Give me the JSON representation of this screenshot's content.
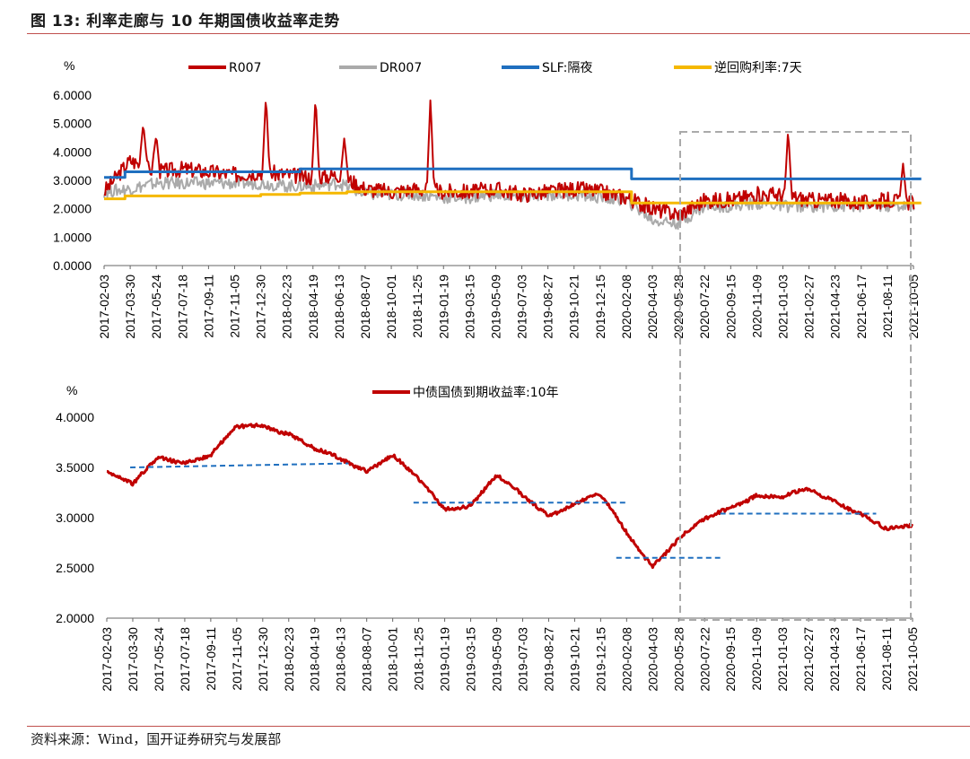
{
  "figure": {
    "title": "图 13:  利率走廊与 10 年期国债收益率走势",
    "source": "资料来源：Wind，国开证券研究与发展部"
  },
  "chart_data": [
    {
      "type": "line",
      "ylabel": "%",
      "ylim": [
        0,
        6
      ],
      "yticks": [
        "0.0000",
        "1.0000",
        "2.0000",
        "3.0000",
        "4.0000",
        "5.0000",
        "6.0000"
      ],
      "x_dates": [
        "2017-02-03",
        "2017-03-30",
        "2017-05-24",
        "2017-07-18",
        "2017-09-11",
        "2017-11-05",
        "2017-12-30",
        "2018-02-23",
        "2018-04-19",
        "2018-06-13",
        "2018-08-07",
        "2018-10-01",
        "2018-11-25",
        "2019-01-19",
        "2019-03-15",
        "2019-05-09",
        "2019-07-03",
        "2019-08-27",
        "2019-10-21",
        "2019-12-15",
        "2020-02-08",
        "2020-04-03",
        "2020-05-28",
        "2020-07-22",
        "2020-09-15",
        "2020-11-09",
        "2021-01-03",
        "2021-02-27",
        "2021-04-23",
        "2021-06-17",
        "2021-08-11",
        "2021-10-05"
      ],
      "legend": [
        "R007",
        "DR007",
        "SLF:隔夜",
        "逆回购利率:7天"
      ],
      "series": [
        {
          "name": "R007",
          "color": "#c00000",
          "values": [
            2.6,
            3.7,
            3.3,
            3.4,
            3.3,
            3.2,
            3.3,
            3.2,
            3.1,
            3.2,
            2.7,
            2.6,
            2.7,
            2.6,
            2.6,
            2.7,
            2.5,
            2.6,
            2.7,
            2.6,
            2.4,
            2.0,
            1.8,
            2.3,
            2.3,
            2.5,
            2.5,
            2.3,
            2.3,
            2.2,
            2.3,
            2.2
          ],
          "spikes": [
            [
              1.5,
              5.0
            ],
            [
              2.0,
              4.6
            ],
            [
              6.2,
              6.0
            ],
            [
              8.1,
              6.0
            ],
            [
              9.2,
              4.5
            ],
            [
              12.5,
              5.9
            ],
            [
              26.2,
              4.8
            ],
            [
              30.6,
              3.6
            ]
          ]
        },
        {
          "name": "DR007",
          "color": "#aaaaaa",
          "values": [
            2.6,
            2.7,
            2.9,
            2.9,
            2.9,
            2.9,
            2.9,
            2.8,
            2.8,
            2.9,
            2.5,
            2.5,
            2.5,
            2.4,
            2.4,
            2.5,
            2.4,
            2.5,
            2.5,
            2.4,
            2.3,
            1.6,
            1.5,
            2.1,
            2.1,
            2.2,
            2.1,
            2.1,
            2.1,
            2.1,
            2.1,
            2.1
          ]
        },
        {
          "name": "SLF:隔夜",
          "color": "#1f6fbf",
          "steps": [
            [
              0,
              3.1
            ],
            [
              0.8,
              3.3
            ],
            [
              7.5,
              3.4
            ],
            [
              20.2,
              3.05
            ],
            [
              31.3,
              3.05
            ]
          ]
        },
        {
          "name": "逆回购利率:7天",
          "color": "#f5b800",
          "steps": [
            [
              0,
              2.35
            ],
            [
              0.8,
              2.45
            ],
            [
              6.0,
              2.5
            ],
            [
              7.5,
              2.55
            ],
            [
              9.3,
              2.6
            ],
            [
              20.2,
              2.2
            ],
            [
              31.3,
              2.2
            ]
          ]
        }
      ]
    },
    {
      "type": "line",
      "ylabel": "%",
      "ylim": [
        2,
        4
      ],
      "yticks": [
        "2.0000",
        "2.5000",
        "3.0000",
        "3.5000",
        "4.0000"
      ],
      "x_dates": [
        "2017-02-03",
        "2017-03-30",
        "2017-05-24",
        "2017-07-18",
        "2017-09-11",
        "2017-11-05",
        "2017-12-30",
        "2018-02-23",
        "2018-04-19",
        "2018-06-13",
        "2018-08-07",
        "2018-10-01",
        "2018-11-25",
        "2019-01-19",
        "2019-03-15",
        "2019-05-09",
        "2019-07-03",
        "2019-08-27",
        "2019-10-21",
        "2019-12-15",
        "2020-02-08",
        "2020-04-03",
        "2020-05-28",
        "2020-07-22",
        "2020-09-15",
        "2020-11-09",
        "2021-01-03",
        "2021-02-27",
        "2021-04-23",
        "2021-06-17",
        "2021-08-11",
        "2021-10-05"
      ],
      "legend": [
        "中债国债到期收益率:10年"
      ],
      "series": [
        {
          "name": "中债国债到期收益率:10年",
          "color": "#c00000",
          "values": [
            3.45,
            3.3,
            3.62,
            3.58,
            3.6,
            3.88,
            3.95,
            3.85,
            3.65,
            3.58,
            3.5,
            3.62,
            3.35,
            3.1,
            3.15,
            3.4,
            3.2,
            3.05,
            3.15,
            3.2,
            2.85,
            2.55,
            2.78,
            2.95,
            3.12,
            3.25,
            3.18,
            3.26,
            3.2,
            3.05,
            2.85,
            2.92
          ]
        }
      ],
      "reference_lines": [
        [
          [
            0.9,
            3.5
          ],
          [
            9.3,
            3.54
          ]
        ],
        [
          [
            11.8,
            3.15
          ],
          [
            20.0,
            3.15
          ]
        ],
        [
          [
            19.6,
            2.6
          ],
          [
            23.6,
            2.6
          ]
        ],
        [
          [
            23.6,
            3.04
          ],
          [
            29.6,
            3.04
          ]
        ]
      ]
    }
  ]
}
